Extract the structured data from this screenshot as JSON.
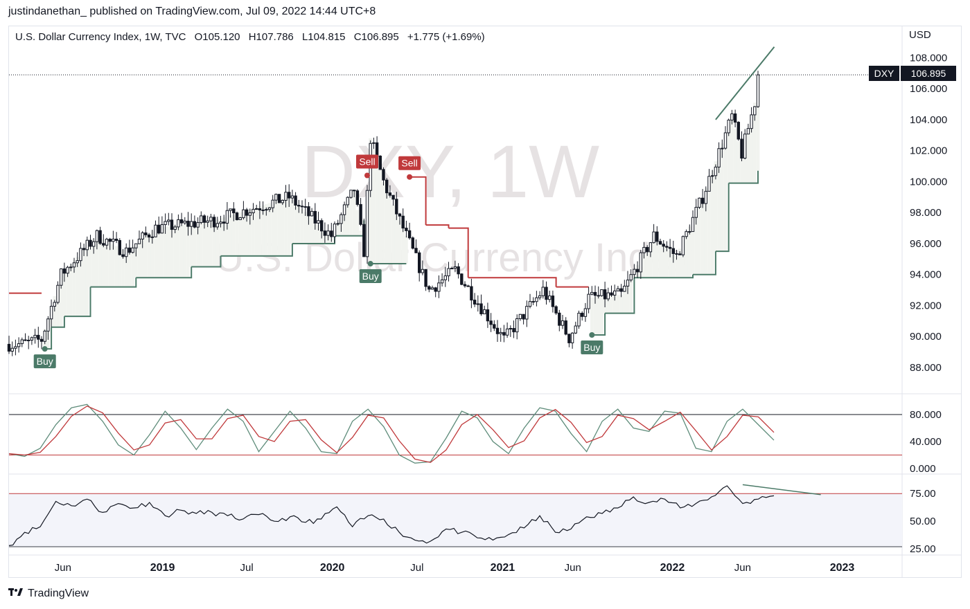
{
  "header": {
    "published": "justindanethan_ published on TradingView.com, Jul 09, 2022 14:44 UTC+8"
  },
  "legend": {
    "title": "U.S. Dollar Currency Index, 1W, TVC",
    "open": "O105.120",
    "high": "H107.786",
    "low": "L104.815",
    "close": "C106.895",
    "change": "+1.775 (+1.69%)"
  },
  "price_axis_currency": "USD",
  "price_tag": {
    "symbol": "DXY",
    "value": "106.895"
  },
  "watermark": {
    "symbol": "DXY, 1W",
    "name": "U.S. Dollar Currency Index"
  },
  "footer": {
    "brand": "TradingView"
  },
  "colors": {
    "up": "#131722",
    "down": "#131722",
    "supertrend_up": "#4b7a68",
    "supertrend_down": "#c0393b",
    "fill_up": "#f1f3ef",
    "stoch_k": "#5e8c7a",
    "stoch_d": "#c0393b",
    "rsi_band": "#f3f4fa"
  },
  "chart_data": [
    {
      "type": "candlestick",
      "title": "U.S. Dollar Currency Index, 1W, TVC",
      "ylim": [
        87,
        110
      ],
      "y_ticks": [
        "88.000",
        "90.000",
        "92.000",
        "94.000",
        "96.000",
        "98.000",
        "100.000",
        "102.000",
        "104.000",
        "106.000",
        "108.000"
      ],
      "x_ticks": [
        "Jun",
        "2019",
        "Jul",
        "2020",
        "Jul",
        "2021",
        "Jun",
        "2022",
        "Jun",
        "2023"
      ],
      "last_close": 106.895,
      "anchors": [
        {
          "x": "2018-03-05",
          "y": 89.5
        },
        {
          "x": "2018-04-16",
          "y": 89.8
        },
        {
          "x": "2018-05-28",
          "y": 94.0
        },
        {
          "x": "2018-08-13",
          "y": 96.5
        },
        {
          "x": "2018-10-15",
          "y": 95.5
        },
        {
          "x": "2018-12-17",
          "y": 97.0
        },
        {
          "x": "2019-04-22",
          "y": 97.5
        },
        {
          "x": "2019-09-30",
          "y": 99.0
        },
        {
          "x": "2019-12-30",
          "y": 96.5
        },
        {
          "x": "2020-02-17",
          "y": 99.5
        },
        {
          "x": "2020-03-09",
          "y": 95.5
        },
        {
          "x": "2020-03-23",
          "y": 102.8
        },
        {
          "x": "2020-04-20",
          "y": 100.0
        },
        {
          "x": "2020-06-08",
          "y": 96.5
        },
        {
          "x": "2020-07-27",
          "y": 93.0
        },
        {
          "x": "2020-09-21",
          "y": 94.3
        },
        {
          "x": "2021-01-04",
          "y": 89.8
        },
        {
          "x": "2021-03-29",
          "y": 93.0
        },
        {
          "x": "2021-05-24",
          "y": 89.9
        },
        {
          "x": "2021-07-05",
          "y": 92.5
        },
        {
          "x": "2021-09-13",
          "y": 92.7
        },
        {
          "x": "2021-11-22",
          "y": 96.5
        },
        {
          "x": "2022-01-10",
          "y": 95.2
        },
        {
          "x": "2022-03-07",
          "y": 99.0
        },
        {
          "x": "2022-05-09",
          "y": 104.2
        },
        {
          "x": "2022-05-30",
          "y": 101.8
        },
        {
          "x": "2022-06-27",
          "y": 105.1
        },
        {
          "x": "2022-07-04",
          "y": 106.895
        }
      ],
      "supertrend": [
        {
          "x": "2018-02-05",
          "y": 92.8,
          "dir": "down"
        },
        {
          "x": "2018-04-16",
          "y": 92.8,
          "dir": "down"
        },
        {
          "x": "2018-04-23",
          "y": 89.2,
          "dir": "up"
        },
        {
          "x": "2018-05-07",
          "y": 90.6,
          "dir": "up"
        },
        {
          "x": "2018-06-04",
          "y": 91.3,
          "dir": "up"
        },
        {
          "x": "2018-07-30",
          "y": 93.2,
          "dir": "up"
        },
        {
          "x": "2018-11-05",
          "y": 93.8,
          "dir": "up"
        },
        {
          "x": "2019-03-04",
          "y": 94.5,
          "dir": "up"
        },
        {
          "x": "2019-05-06",
          "y": 95.2,
          "dir": "up"
        },
        {
          "x": "2019-10-07",
          "y": 96.0,
          "dir": "up"
        },
        {
          "x": "2020-01-06",
          "y": 96.5,
          "dir": "up"
        },
        {
          "x": "2020-03-09",
          "y": 97.5,
          "dir": "up"
        },
        {
          "x": "2020-03-16",
          "y": 100.4,
          "dir": "down"
        },
        {
          "x": "2020-03-23",
          "y": 94.7,
          "dir": "up"
        },
        {
          "x": "2020-06-08",
          "y": 94.7,
          "dir": "up"
        },
        {
          "x": "2020-06-15",
          "y": 100.3,
          "dir": "down"
        },
        {
          "x": "2020-07-20",
          "y": 97.2,
          "dir": "down"
        },
        {
          "x": "2020-09-07",
          "y": 97.0,
          "dir": "down"
        },
        {
          "x": "2020-10-19",
          "y": 93.8,
          "dir": "down"
        },
        {
          "x": "2021-04-26",
          "y": 93.2,
          "dir": "down"
        },
        {
          "x": "2021-07-05",
          "y": 93.2,
          "dir": "down"
        },
        {
          "x": "2021-07-12",
          "y": 90.1,
          "dir": "up"
        },
        {
          "x": "2021-08-09",
          "y": 91.5,
          "dir": "up"
        },
        {
          "x": "2021-10-11",
          "y": 93.8,
          "dir": "up"
        },
        {
          "x": "2022-02-14",
          "y": 94.0,
          "dir": "up"
        },
        {
          "x": "2022-04-04",
          "y": 95.5,
          "dir": "up"
        },
        {
          "x": "2022-05-02",
          "y": 99.9,
          "dir": "up"
        },
        {
          "x": "2022-07-04",
          "y": 100.7,
          "dir": "up"
        }
      ],
      "signals": [
        {
          "label": "Buy",
          "x": "2018-04-23",
          "y": 89.2
        },
        {
          "label": "Sell",
          "x": "2020-03-16",
          "y": 100.4
        },
        {
          "label": "Buy",
          "x": "2020-03-23",
          "y": 94.7
        },
        {
          "label": "Sell",
          "x": "2020-06-15",
          "y": 100.3
        },
        {
          "label": "Buy",
          "x": "2021-07-12",
          "y": 90.1
        }
      ],
      "trendline": [
        {
          "x": "2022-04-04",
          "y": 104.0
        },
        {
          "x": "2022-08-08",
          "y": 108.7
        }
      ]
    },
    {
      "type": "line",
      "title": "Stochastic",
      "ylim": [
        0,
        100
      ],
      "y_ticks": [
        "0.000",
        "40.000",
        "80.000"
      ],
      "levels": [
        80,
        20
      ],
      "series": [
        {
          "values": [
            22,
            18,
            30,
            65,
            90,
            95,
            70,
            35,
            20,
            50,
            85,
            60,
            28,
            60,
            88,
            70,
            25,
            55,
            85,
            60,
            25,
            22,
            70,
            88,
            62,
            20,
            8,
            10,
            45,
            85,
            75,
            40,
            22,
            60,
            90,
            85,
            52,
            25,
            70,
            88,
            60,
            55,
            85,
            82,
            30,
            25,
            70,
            88,
            65,
            42
          ]
        }
      ]
    },
    {
      "type": "line",
      "title": "RSI",
      "ylim": [
        25,
        80
      ],
      "y_ticks": [
        "25.00",
        "50.00",
        "75.00"
      ],
      "levels": [
        75,
        27
      ],
      "series": [
        {
          "values": [
            28,
            40,
            45,
            68,
            64,
            70,
            58,
            66,
            62,
            67,
            55,
            60,
            57,
            58,
            55,
            52,
            56,
            50,
            54,
            49,
            52,
            63,
            45,
            55,
            52,
            40,
            33,
            32,
            43,
            40,
            35,
            33,
            38,
            44,
            55,
            40,
            43,
            54,
            57,
            62,
            72,
            67,
            70,
            62,
            66,
            72,
            82,
            66,
            70,
            73
          ]
        }
      ],
      "divergence_line": [
        {
          "i": 47,
          "y": 83
        },
        {
          "i": 52,
          "y": 74
        }
      ]
    }
  ]
}
